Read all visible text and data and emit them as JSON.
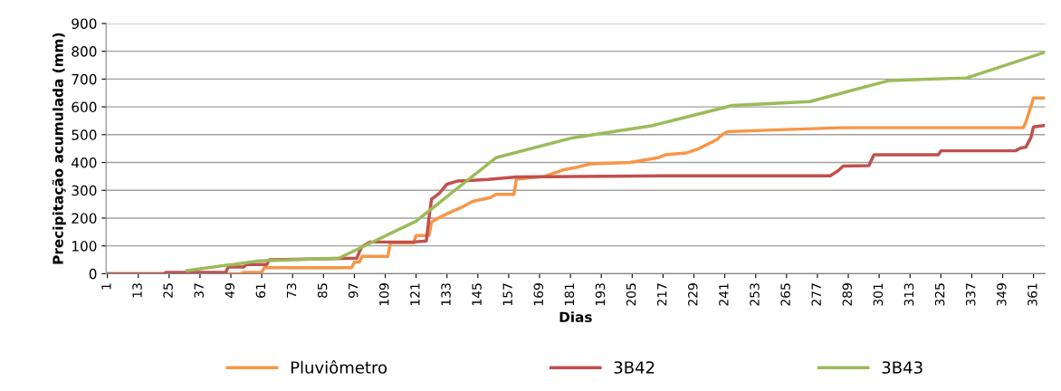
{
  "chart_data": {
    "type": "line",
    "xlabel": "Dias",
    "ylabel": "Precipitação acumulada (mm)",
    "xlim": [
      0.5,
      365.5
    ],
    "xticks": [
      1,
      13,
      25,
      37,
      49,
      61,
      73,
      85,
      97,
      109,
      121,
      133,
      145,
      157,
      169,
      181,
      193,
      205,
      217,
      229,
      241,
      253,
      265,
      277,
      289,
      301,
      313,
      325,
      337,
      349,
      361
    ],
    "ylim": [
      0,
      900
    ],
    "yticks": [
      0,
      100,
      200,
      300,
      400,
      500,
      600,
      700,
      800,
      900
    ],
    "grid": "y",
    "legend": "bottom",
    "marker": "none",
    "line_style": "solid",
    "series": [
      {
        "name": "Pluviômetro",
        "color": "#f79646",
        "x": [
          1,
          53,
          54,
          61,
          62,
          96,
          97,
          99,
          100,
          110,
          111,
          120,
          121,
          126,
          127,
          130,
          135,
          139,
          143,
          150,
          152,
          159,
          160,
          171,
          178,
          184,
          189,
          204,
          208,
          215,
          218,
          226,
          231,
          238,
          240,
          242,
          257,
          286,
          357,
          358,
          361,
          365
        ],
        "values": [
          0,
          0,
          5,
          5,
          22,
          22,
          42,
          42,
          62,
          62,
          110,
          110,
          137,
          137,
          185,
          202,
          224,
          240,
          260,
          274,
          285,
          285,
          340,
          350,
          373,
          384,
          395,
          400,
          406,
          417,
          428,
          434,
          450,
          483,
          500,
          511,
          516,
          525,
          525,
          544,
          632,
          632
        ]
      },
      {
        "name": "3B42",
        "color": "#c0504d",
        "x": [
          1,
          23,
          24,
          47,
          48,
          54,
          55,
          63,
          64,
          98,
          99,
          100,
          103,
          120,
          125,
          126,
          127,
          130,
          133,
          137,
          149,
          160,
          218,
          282,
          285,
          287,
          297,
          299,
          324,
          325,
          354,
          356,
          358,
          360,
          361,
          365
        ],
        "values": [
          0,
          0,
          5,
          5,
          24,
          24,
          33,
          33,
          50,
          56,
          80,
          97,
          114,
          114,
          118,
          200,
          268,
          289,
          322,
          333,
          339,
          348,
          352,
          352,
          370,
          387,
          389,
          428,
          428,
          442,
          442,
          452,
          455,
          490,
          528,
          533
        ]
      },
      {
        "name": "3B43",
        "color": "#9bbb59",
        "x": [
          32,
          60,
          91,
          121,
          152,
          182,
          213,
          244,
          274,
          305,
          335,
          365
        ],
        "values": [
          11,
          46,
          56,
          189,
          417,
          489,
          533,
          605,
          619,
          695,
          704,
          795
        ]
      }
    ]
  }
}
